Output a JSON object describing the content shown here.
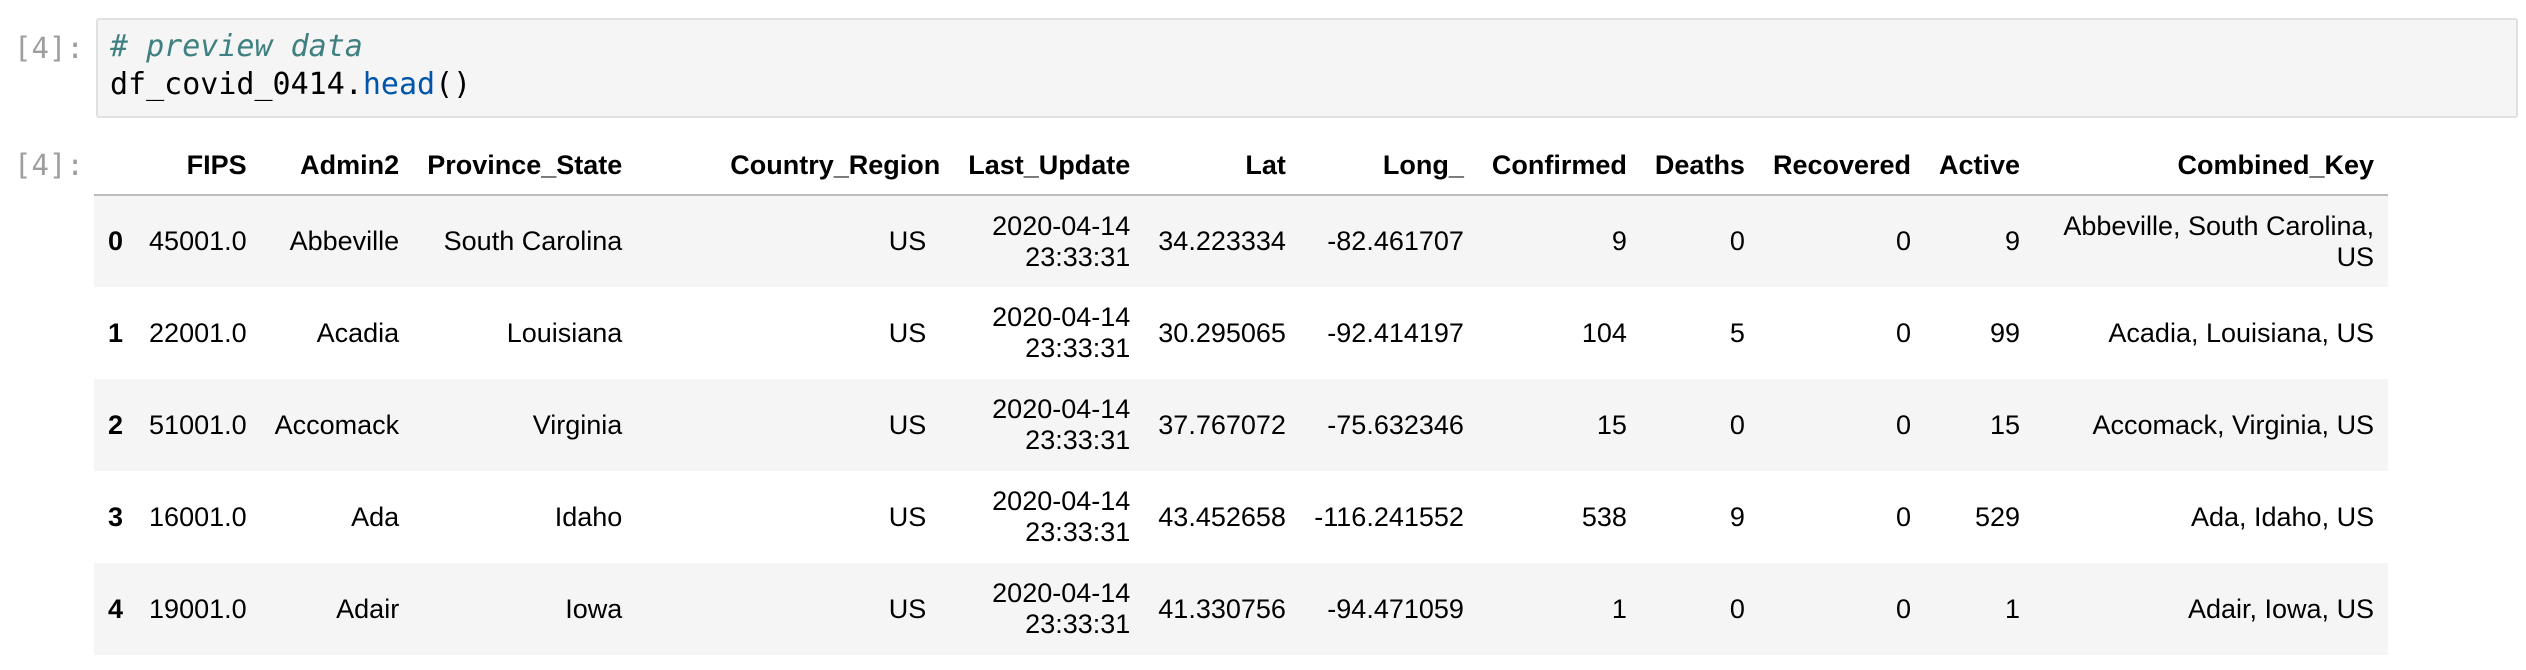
{
  "input_cell": {
    "prompt": "[4]:",
    "comment": "# preview data",
    "code_object": "df_covid_0414.",
    "code_method": "head",
    "code_parens": "()"
  },
  "output_cell": {
    "prompt": "[4]:",
    "columns": [
      "",
      "FIPS",
      "Admin2",
      "Province_State",
      "Country_Region",
      "Last_Update",
      "Lat",
      "Long_",
      "Confirmed",
      "Deaths",
      "Recovered",
      "Active",
      "Combined_Key"
    ],
    "rows": [
      {
        "index": "0",
        "cells": [
          "45001.0",
          "Abbeville",
          "South Carolina",
          "US",
          "2020-04-14 23:33:31",
          "34.223334",
          "-82.461707",
          "9",
          "0",
          "0",
          "9",
          "Abbeville, South Carolina, US"
        ]
      },
      {
        "index": "1",
        "cells": [
          "22001.0",
          "Acadia",
          "Louisiana",
          "US",
          "2020-04-14 23:33:31",
          "30.295065",
          "-92.414197",
          "104",
          "5",
          "0",
          "99",
          "Acadia, Louisiana, US"
        ]
      },
      {
        "index": "2",
        "cells": [
          "51001.0",
          "Accomack",
          "Virginia",
          "US",
          "2020-04-14 23:33:31",
          "37.767072",
          "-75.632346",
          "15",
          "0",
          "0",
          "15",
          "Accomack, Virginia, US"
        ]
      },
      {
        "index": "3",
        "cells": [
          "16001.0",
          "Ada",
          "Idaho",
          "US",
          "2020-04-14 23:33:31",
          "43.452658",
          "-116.241552",
          "538",
          "9",
          "0",
          "529",
          "Ada, Idaho, US"
        ]
      },
      {
        "index": "4",
        "cells": [
          "19001.0",
          "Adair",
          "Iowa",
          "US",
          "2020-04-14 23:33:31",
          "41.330756",
          "-94.471059",
          "1",
          "0",
          "0",
          "1",
          "Adair, Iowa, US"
        ]
      }
    ]
  }
}
